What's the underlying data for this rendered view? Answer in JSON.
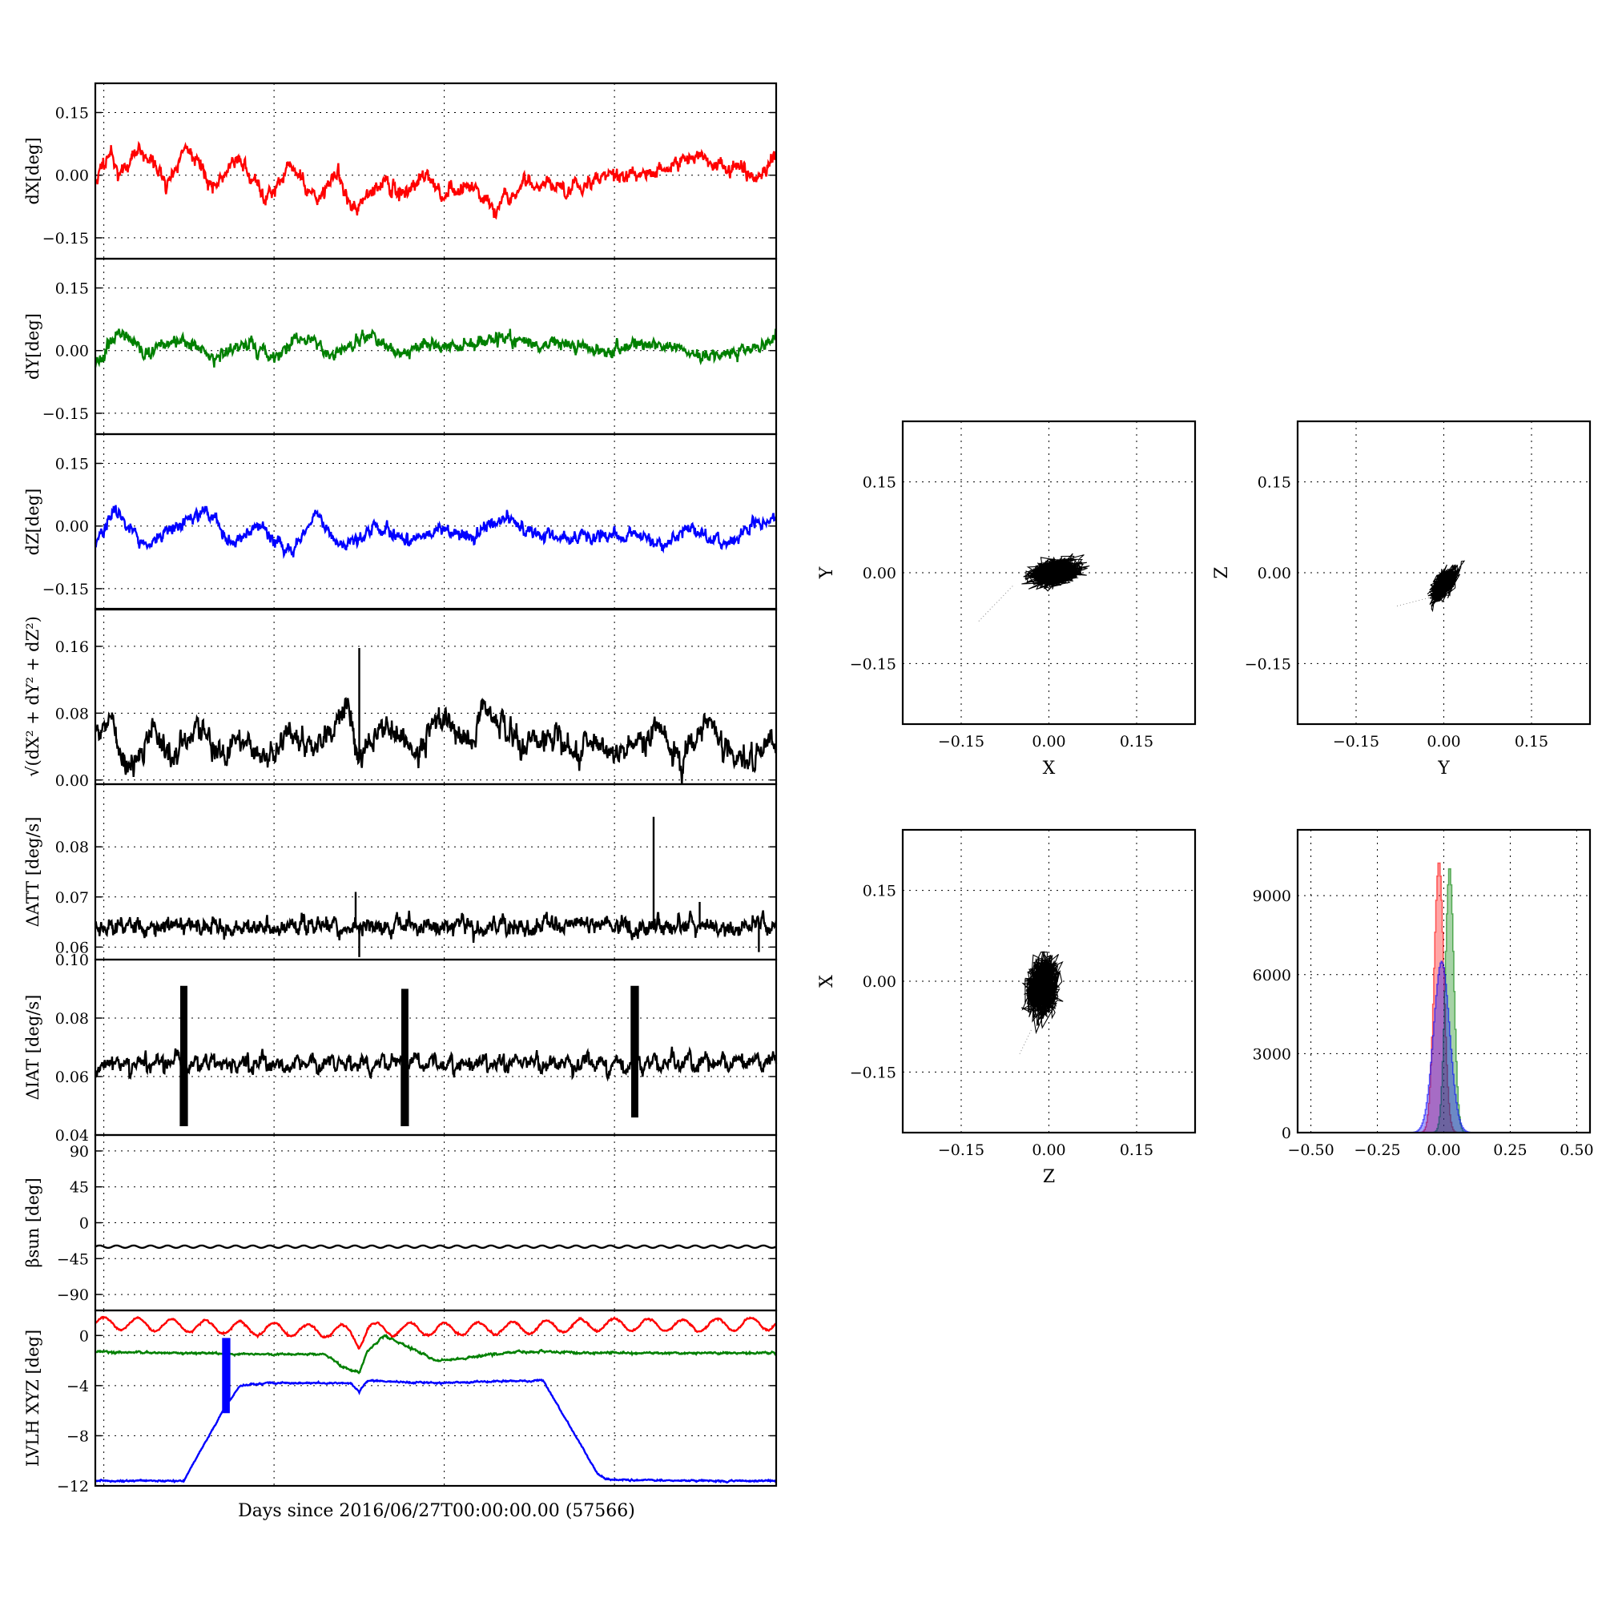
{
  "chart_data": [
    {
      "id": "dx",
      "type": "line",
      "ylabel": "dX[deg]",
      "ylim": [
        -0.2,
        0.22
      ],
      "yticks": [
        -0.15,
        0.0,
        0.15
      ],
      "ytick_labels": [
        "−0.15",
        "0.00",
        "0.15"
      ],
      "xlim": [
        0,
        4
      ],
      "grid": true,
      "series": [
        {
          "color": "#ff0000",
          "shape": [
            [
              0,
              -0.02
            ],
            [
              0.08,
              0.06
            ],
            [
              0.14,
              0.0
            ],
            [
              0.25,
              0.06
            ],
            [
              0.35,
              0.03
            ],
            [
              0.42,
              -0.03
            ],
            [
              0.53,
              0.07
            ],
            [
              0.6,
              0.04
            ],
            [
              0.7,
              -0.04
            ],
            [
              0.83,
              0.05
            ],
            [
              0.9,
              0.0
            ],
            [
              1.0,
              -0.05
            ],
            [
              1.15,
              0.02
            ],
            [
              1.3,
              -0.06
            ],
            [
              1.42,
              0.0
            ],
            [
              1.53,
              -0.09
            ],
            [
              1.65,
              -0.02
            ],
            [
              1.8,
              -0.04
            ],
            [
              1.95,
              0.0
            ],
            [
              2.05,
              -0.06
            ],
            [
              2.2,
              -0.02
            ],
            [
              2.35,
              -0.09
            ],
            [
              2.5,
              -0.02
            ],
            [
              2.65,
              -0.02
            ],
            [
              2.8,
              -0.03
            ],
            [
              3.0,
              0.0
            ],
            [
              3.2,
              0.0
            ],
            [
              3.4,
              0.02
            ],
            [
              3.55,
              0.05
            ],
            [
              3.7,
              0.02
            ],
            [
              3.85,
              0.0
            ],
            [
              4.0,
              0.03
            ]
          ],
          "noise": 0.012,
          "seed": 11
        }
      ]
    },
    {
      "id": "dy",
      "type": "line",
      "ylabel": "dY[deg]",
      "ylim": [
        -0.2,
        0.22
      ],
      "yticks": [
        -0.15,
        0.0,
        0.15
      ],
      "ytick_labels": [
        "−0.15",
        "0.00",
        "0.15"
      ],
      "xlim": [
        0,
        4
      ],
      "grid": true,
      "series": [
        {
          "color": "#008000",
          "shape": [
            [
              0,
              -0.03
            ],
            [
              0.12,
              0.04
            ],
            [
              0.3,
              -0.01
            ],
            [
              0.5,
              0.03
            ],
            [
              0.7,
              -0.02
            ],
            [
              0.9,
              0.02
            ],
            [
              1.05,
              -0.02
            ],
            [
              1.2,
              0.03
            ],
            [
              1.4,
              -0.01
            ],
            [
              1.6,
              0.03
            ],
            [
              1.8,
              -0.01
            ],
            [
              2.0,
              0.02
            ],
            [
              2.2,
              0.01
            ],
            [
              2.4,
              0.03
            ],
            [
              2.6,
              0.01
            ],
            [
              2.8,
              0.02
            ],
            [
              3.0,
              0.0
            ],
            [
              3.2,
              0.02
            ],
            [
              3.4,
              0.01
            ],
            [
              3.6,
              -0.02
            ],
            [
              3.8,
              0.0
            ],
            [
              4.0,
              0.03
            ]
          ],
          "noise": 0.01,
          "seed": 23
        }
      ]
    },
    {
      "id": "dz",
      "type": "line",
      "ylabel": "dZ[deg]",
      "ylim": [
        -0.2,
        0.22
      ],
      "yticks": [
        -0.15,
        0.0,
        0.15
      ],
      "ytick_labels": [
        "−0.15",
        "0.00",
        "0.15"
      ],
      "xlim": [
        0,
        4
      ],
      "grid": true,
      "series": [
        {
          "color": "#0000ff",
          "shape": [
            [
              0,
              -0.04
            ],
            [
              0.12,
              0.04
            ],
            [
              0.3,
              -0.05
            ],
            [
              0.5,
              0.0
            ],
            [
              0.65,
              0.04
            ],
            [
              0.8,
              -0.04
            ],
            [
              0.95,
              0.0
            ],
            [
              1.15,
              -0.06
            ],
            [
              1.3,
              0.03
            ],
            [
              1.45,
              -0.05
            ],
            [
              1.65,
              0.0
            ],
            [
              1.85,
              -0.04
            ],
            [
              2.05,
              0.0
            ],
            [
              2.2,
              -0.03
            ],
            [
              2.4,
              0.02
            ],
            [
              2.6,
              -0.02
            ],
            [
              2.8,
              -0.03
            ],
            [
              3.0,
              -0.03
            ],
            [
              3.2,
              -0.02
            ],
            [
              3.35,
              -0.05
            ],
            [
              3.5,
              0.0
            ],
            [
              3.7,
              -0.05
            ],
            [
              3.85,
              0.0
            ],
            [
              4.0,
              0.02
            ]
          ],
          "noise": 0.01,
          "seed": 37
        }
      ]
    },
    {
      "id": "norm",
      "type": "line",
      "ylabel": "√(dX² + dY² + dZ²)",
      "ylim": [
        -0.005,
        0.205
      ],
      "yticks": [
        0.0,
        0.08,
        0.16
      ],
      "ytick_labels": [
        "0.00",
        "0.08",
        "0.16"
      ],
      "xlim": [
        0,
        4
      ],
      "grid": true,
      "series": [
        {
          "color": "#000000",
          "shape": [
            [
              0,
              0.05
            ],
            [
              0.1,
              0.08
            ],
            [
              0.2,
              0.01
            ],
            [
              0.35,
              0.06
            ],
            [
              0.45,
              0.02
            ],
            [
              0.6,
              0.07
            ],
            [
              0.7,
              0.03
            ],
            [
              0.85,
              0.05
            ],
            [
              1.0,
              0.02
            ],
            [
              1.15,
              0.06
            ],
            [
              1.3,
              0.03
            ],
            [
              1.48,
              0.09
            ],
            [
              1.55,
              0.03
            ],
            [
              1.7,
              0.06
            ],
            [
              1.9,
              0.04
            ],
            [
              2.05,
              0.08
            ],
            [
              2.2,
              0.04
            ],
            [
              2.3,
              0.09
            ],
            [
              2.5,
              0.04
            ],
            [
              2.7,
              0.05
            ],
            [
              2.9,
              0.03
            ],
            [
              3.1,
              0.04
            ],
            [
              3.3,
              0.06
            ],
            [
              3.45,
              0.02
            ],
            [
              3.6,
              0.08
            ],
            [
              3.75,
              0.02
            ],
            [
              3.9,
              0.04
            ],
            [
              4.0,
              0.04
            ]
          ],
          "noise": 0.01,
          "seed": 41,
          "spikes": [
            [
              1.55,
              0.158
            ]
          ]
        }
      ]
    },
    {
      "id": "datt",
      "type": "line",
      "ylabel": "ΔATT [deg/s]",
      "ylim": [
        0.0575,
        0.0925
      ],
      "yticks": [
        0.06,
        0.07,
        0.08
      ],
      "ytick_labels": [
        "0.06",
        "0.07",
        "0.08"
      ],
      "xlim": [
        0,
        4
      ],
      "grid": true,
      "series": [
        {
          "color": "#000000",
          "shape": [
            [
              0,
              0.0642
            ],
            [
              4.0,
              0.0642
            ]
          ],
          "noise": 0.0012,
          "seed": 53,
          "spikes": [
            [
              1.53,
              0.071
            ],
            [
              1.55,
              0.058
            ],
            [
              3.28,
              0.086
            ],
            [
              3.55,
              0.069
            ],
            [
              3.9,
              0.059
            ]
          ]
        }
      ]
    },
    {
      "id": "diat",
      "type": "line",
      "ylabel": "ΔIAT [deg/s]",
      "ylim": [
        0.04,
        0.1
      ],
      "yticks": [
        0.04,
        0.06,
        0.08,
        0.1
      ],
      "ytick_labels": [
        "0.04",
        "0.06",
        "0.08",
        "0.10"
      ],
      "xlim": [
        0,
        4
      ],
      "grid": true,
      "series": [
        {
          "color": "#000000",
          "shape": [
            [
              0,
              0.064
            ],
            [
              4.0,
              0.065
            ]
          ],
          "noise": 0.0015,
          "seed": 67,
          "sawtooth": 0.1,
          "bursts": [
            [
              0.5,
              0.091,
              0.043
            ],
            [
              1.8,
              0.09,
              0.043
            ],
            [
              3.15,
              0.091,
              0.046
            ]
          ]
        }
      ]
    },
    {
      "id": "beta",
      "type": "line",
      "ylabel": "βsun [deg]",
      "ylim": [
        -110,
        110
      ],
      "yticks": [
        -90,
        -45,
        0,
        45,
        90
      ],
      "ytick_labels": [
        "−90",
        "−45",
        "0",
        "45",
        "90"
      ],
      "xlim": [
        0,
        4
      ],
      "grid": true,
      "series": [
        {
          "color": "#000000",
          "shape": [
            [
              0,
              -30
            ],
            [
              4.0,
              -30
            ]
          ],
          "wave": [
            1.5,
            0.1
          ]
        }
      ]
    },
    {
      "id": "lvlh",
      "type": "line",
      "ylabel": "LVLH XYZ [deg]",
      "ylim": [
        -12,
        2
      ],
      "yticks": [
        -12,
        -8,
        -4,
        0
      ],
      "ytick_labels": [
        "−12",
        "−8",
        "−4",
        "0"
      ],
      "xlim": [
        0,
        4
      ],
      "xlabel": "Days since 2016/06/27T00:00:00.00 (57566)",
      "grid": true,
      "series": [
        {
          "color": "#ff0000",
          "shape": [
            [
              0,
              1.0
            ],
            [
              0.5,
              0.8
            ],
            [
              1.0,
              0.5
            ],
            [
              1.5,
              0.3
            ],
            [
              1.55,
              -0.5
            ],
            [
              1.6,
              0.5
            ],
            [
              2.0,
              0.5
            ],
            [
              2.5,
              0.6
            ],
            [
              3.0,
              0.9
            ],
            [
              3.5,
              0.8
            ],
            [
              4.0,
              1.0
            ]
          ],
          "wave": [
            0.5,
            0.2
          ],
          "noise": 0.05,
          "seed": 71
        },
        {
          "color": "#008000",
          "shape": [
            [
              0,
              -1.3
            ],
            [
              1.0,
              -1.5
            ],
            [
              1.35,
              -1.5
            ],
            [
              1.45,
              -2.5
            ],
            [
              1.55,
              -3.0
            ],
            [
              1.6,
              -1.2
            ],
            [
              1.7,
              0.0
            ],
            [
              1.85,
              -1.0
            ],
            [
              2.0,
              -2.0
            ],
            [
              2.5,
              -1.3
            ],
            [
              3.0,
              -1.4
            ],
            [
              4.0,
              -1.4
            ]
          ],
          "noise": 0.05,
          "seed": 79
        },
        {
          "color": "#0000ff",
          "shape": [
            [
              0,
              -11.6
            ],
            [
              0.52,
              -11.6
            ],
            [
              0.75,
              -6.0
            ],
            [
              0.85,
              -4.0
            ],
            [
              1.0,
              -3.8
            ],
            [
              1.5,
              -3.8
            ],
            [
              1.55,
              -4.5
            ],
            [
              1.6,
              -3.6
            ],
            [
              2.0,
              -3.8
            ],
            [
              2.5,
              -3.6
            ],
            [
              2.63,
              -3.6
            ],
            [
              2.95,
              -11.0
            ],
            [
              3.0,
              -11.5
            ],
            [
              3.5,
              -11.6
            ],
            [
              4.0,
              -11.6
            ]
          ],
          "noise": 0.04,
          "seed": 83,
          "bursts": [
            [
              0.75,
              -0.2,
              -6.2
            ]
          ]
        }
      ]
    },
    {
      "id": "scatter_xy",
      "type": "scatter",
      "xlabel": "X",
      "ylabel": "Y",
      "xlim": [
        -0.25,
        0.25
      ],
      "ylim": [
        -0.25,
        0.25
      ],
      "ticks": [
        -0.15,
        0.0,
        0.15
      ],
      "tick_labels": [
        "−0.15",
        "0.00",
        "0.15"
      ],
      "grid": true,
      "series": [
        {
          "color": "#000000",
          "cx": 0.01,
          "cy": 0.0,
          "sx": 0.032,
          "sy": 0.017,
          "corr": 0.3,
          "n": 2200,
          "seed": 101,
          "tail": [
            [
              -0.12,
              -0.08
            ],
            [
              -0.06,
              -0.02
            ]
          ]
        }
      ]
    },
    {
      "id": "scatter_yz",
      "type": "scatter",
      "xlabel": "Y",
      "ylabel": "Z",
      "xlim": [
        -0.25,
        0.25
      ],
      "ylim": [
        -0.25,
        0.25
      ],
      "ticks": [
        -0.15,
        0.0,
        0.15
      ],
      "tick_labels": [
        "−0.15",
        "0.00",
        "0.15"
      ],
      "grid": true,
      "series": [
        {
          "color": "#000000",
          "cx": 0.0,
          "cy": -0.02,
          "sx": 0.016,
          "sy": 0.02,
          "corr": 0.6,
          "n": 1800,
          "seed": 113,
          "tail": [
            [
              -0.08,
              -0.055
            ],
            [
              -0.02,
              -0.04
            ]
          ]
        }
      ]
    },
    {
      "id": "scatter_zx",
      "type": "scatter",
      "xlabel": "Z",
      "ylabel": "X",
      "xlim": [
        -0.25,
        0.25
      ],
      "ylim": [
        -0.25,
        0.25
      ],
      "ticks": [
        -0.15,
        0.0,
        0.15
      ],
      "tick_labels": [
        "−0.15",
        "0.00",
        "0.15"
      ],
      "grid": true,
      "series": [
        {
          "color": "#000000",
          "cx": -0.01,
          "cy": -0.01,
          "sx": 0.02,
          "sy": 0.035,
          "corr": 0.1,
          "n": 2000,
          "seed": 127,
          "tail": [
            [
              -0.05,
              -0.12
            ],
            [
              -0.03,
              -0.08
            ]
          ]
        }
      ]
    },
    {
      "id": "hist",
      "type": "area",
      "xlim": [
        -0.55,
        0.55
      ],
      "ylim": [
        0,
        11500
      ],
      "xticks": [
        -0.5,
        -0.25,
        0.0,
        0.25,
        0.5
      ],
      "xtick_labels": [
        "−0.50",
        "−0.25",
        "0.00",
        "0.25",
        "0.50"
      ],
      "yticks": [
        0,
        3000,
        6000,
        9000
      ],
      "ytick_labels": [
        "0",
        "3000",
        "6000",
        "9000"
      ],
      "grid": true,
      "series": [
        {
          "color": "#ff0000",
          "center": -0.02,
          "width": 0.018,
          "peak": 10300
        },
        {
          "color": "#008000",
          "center": 0.02,
          "width": 0.016,
          "peak": 10100
        },
        {
          "color": "#0000ff",
          "center": -0.01,
          "width": 0.03,
          "peak": 6500
        }
      ]
    }
  ]
}
